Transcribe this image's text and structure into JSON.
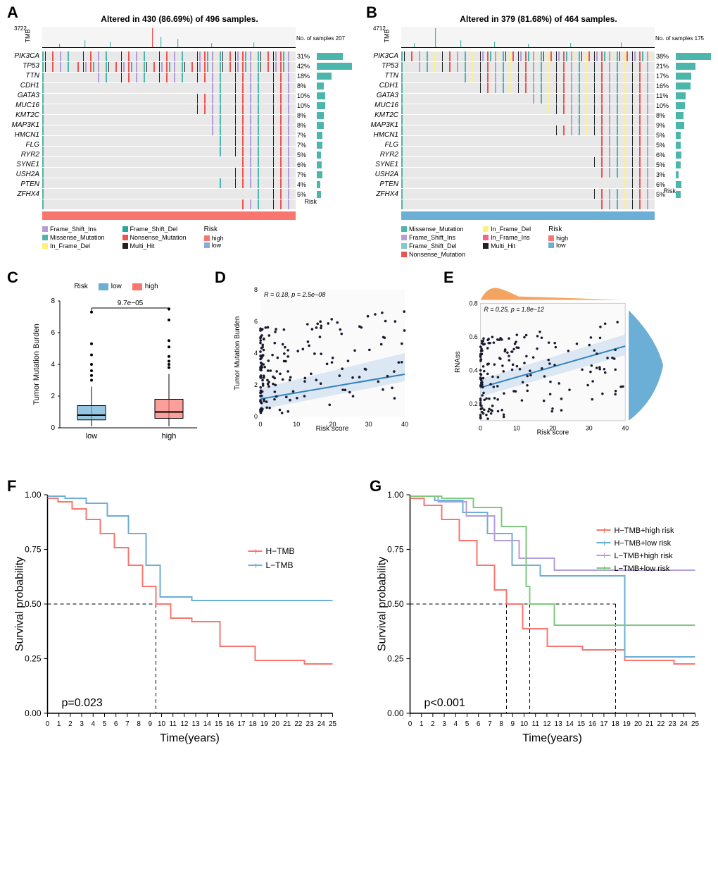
{
  "panels": {
    "A": {
      "label": "A"
    },
    "B": {
      "label": "B"
    },
    "C": {
      "label": "C"
    },
    "D": {
      "label": "D"
    },
    "E": {
      "label": "E"
    },
    "F": {
      "label": "F"
    },
    "G": {
      "label": "G"
    }
  },
  "waterfall_A": {
    "title": "Altered in 430 (86.69%) of 496 samples.",
    "tmb_label": "TMB",
    "tmb_max": "3722",
    "samples_label": "No. of samples",
    "samples_max": "207",
    "genes": [
      "PIK3CA",
      "TP53",
      "TTN",
      "CDH1",
      "GATA3",
      "MUC16",
      "KMT2C",
      "MAP3K1",
      "HMCN1",
      "FLG",
      "RYR2",
      "SYNE1",
      "USH2A",
      "PTEN",
      "ZFHX4"
    ],
    "pcts": [
      "31%",
      "42%",
      "18%",
      "8%",
      "10%",
      "10%",
      "8%",
      "8%",
      "7%",
      "7%",
      "5%",
      "6%",
      "7%",
      "4%",
      "5%"
    ],
    "bar_values": [
      31,
      42,
      18,
      8,
      10,
      10,
      8,
      8,
      7,
      7,
      5,
      6,
      7,
      4,
      5
    ],
    "risk_color": "#f8766d",
    "risk_label": "Risk",
    "legend1": [
      {
        "c": "#b39ddb",
        "t": "Frame_Shift_Ins"
      },
      {
        "c": "#4db6ac",
        "t": "Missense_Mutation"
      },
      {
        "c": "#fff176",
        "t": "In_Frame_Del"
      }
    ],
    "legend2": [
      {
        "c": "#26a69a",
        "t": "Frame_Shift_Del"
      },
      {
        "c": "#ef5350",
        "t": "Nonsense_Mutation"
      },
      {
        "c": "#212121",
        "t": "Multi_Hit"
      }
    ],
    "risk_legend_title": "Risk",
    "risk_legend": [
      {
        "c": "#f8766d",
        "t": "high"
      },
      {
        "c": "#8fa8dc",
        "t": "low"
      }
    ]
  },
  "waterfall_B": {
    "title": "Altered in 379 (81.68%) of 464 samples.",
    "tmb_label": "TMB",
    "tmb_max": "4712",
    "samples_label": "No. of samples",
    "samples_max": "175",
    "genes": [
      "PIK3CA",
      "TP53",
      "TTN",
      "CDH1",
      "GATA3",
      "MUC16",
      "KMT2C",
      "MAP3K1",
      "HMCN1",
      "FLG",
      "RYR2",
      "SYNE1",
      "USH2A",
      "PTEN",
      "ZFHX4"
    ],
    "pcts": [
      "38%",
      "21%",
      "17%",
      "16%",
      "11%",
      "10%",
      "8%",
      "9%",
      "5%",
      "5%",
      "6%",
      "5%",
      "3%",
      "6%",
      "5%"
    ],
    "bar_values": [
      38,
      21,
      17,
      16,
      11,
      10,
      8,
      9,
      5,
      5,
      6,
      5,
      3,
      6,
      5
    ],
    "risk_color": "#6baed6",
    "risk_label": "Risk",
    "legend1": [
      {
        "c": "#4db6ac",
        "t": "Missense_Mutation"
      },
      {
        "c": "#b39ddb",
        "t": "Frame_Shift_Ins"
      },
      {
        "c": "#80cbc4",
        "t": "Frame_Shift_Del"
      },
      {
        "c": "#ef5350",
        "t": "Nonsense_Mutation"
      }
    ],
    "legend2": [
      {
        "c": "#fff176",
        "t": "In_Frame_Del"
      },
      {
        "c": "#f06292",
        "t": "In_Frame_Ins"
      },
      {
        "c": "#212121",
        "t": "Multi_Hit"
      }
    ],
    "risk_legend_title": "Risk",
    "risk_legend": [
      {
        "c": "#f8766d",
        "t": "high"
      },
      {
        "c": "#6baed6",
        "t": "low"
      }
    ]
  },
  "boxplot_C": {
    "legend_title": "Risk",
    "legend": [
      {
        "c": "#6baed6",
        "t": "low"
      },
      {
        "c": "#f8766d",
        "t": "high"
      }
    ],
    "ylabel": "Tumor Mutation Burden",
    "pvalue": "9.7e−05",
    "ylim": [
      0,
      8
    ],
    "yticks": [
      0,
      2,
      4,
      6,
      8
    ],
    "categories": [
      "low",
      "high"
    ],
    "boxes": [
      {
        "color": "#6baed6",
        "q1": 0.5,
        "med": 0.8,
        "q3": 1.4,
        "wlo": 0.1,
        "whi": 2.6,
        "outliers": [
          3.0,
          3.3,
          3.6,
          4.0,
          4.6,
          5.3,
          7.3
        ]
      },
      {
        "color": "#f8766d",
        "q1": 0.6,
        "med": 1.0,
        "q3": 1.8,
        "wlo": 0.1,
        "whi": 3.4,
        "outliers": [
          3.8,
          4.0,
          4.2,
          4.5,
          5.1,
          5.5,
          6.8,
          7.5
        ]
      }
    ]
  },
  "scatter_D": {
    "stats": "R = 0.18, p = 2.5e−08",
    "ylabel": "Tumor Mutation Burden",
    "xlabel": "Risk score",
    "xlim": [
      0,
      40
    ],
    "ylim": [
      0,
      8
    ],
    "xticks": [
      0,
      10,
      20,
      30,
      40
    ],
    "yticks": [
      0,
      2,
      4,
      6,
      8
    ],
    "line_color": "#3182bd",
    "ci_color": "#c6dbef",
    "line": {
      "x1": 0,
      "y1": 1.0,
      "x2": 40,
      "y2": 2.5
    }
  },
  "scatter_E": {
    "stats": "R = 0.25, p = 1.8e−12",
    "ylabel": "RNAss",
    "xlabel": "Risk score",
    "xlim": [
      0,
      40
    ],
    "ylim": [
      0.1,
      0.8
    ],
    "xticks": [
      0,
      10,
      20,
      30,
      40
    ],
    "yticks": [
      0.2,
      0.4,
      0.6,
      0.8
    ],
    "line_color": "#3182bd",
    "ci_color": "#c6dbef",
    "marginal_top_color": "#f4a460",
    "marginal_right_color": "#6baed6",
    "line": {
      "x1": 0,
      "y1": 0.34,
      "x2": 40,
      "y2": 0.56
    }
  },
  "survival_F": {
    "ylabel": "Survival probability",
    "xlabel": "Time(years)",
    "pvalue": "p=0.023",
    "xlim": [
      0,
      25
    ],
    "ylim": [
      0,
      1
    ],
    "xticks": [
      0,
      1,
      2,
      3,
      4,
      5,
      6,
      7,
      8,
      9,
      10,
      11,
      12,
      13,
      14,
      15,
      16,
      17,
      18,
      19,
      20,
      21,
      22,
      23,
      24,
      25
    ],
    "yticks": [
      0.0,
      0.25,
      0.5,
      0.75,
      1.0
    ],
    "legend": [
      {
        "c": "#f8766d",
        "t": "H−TMB"
      },
      {
        "c": "#6baed6",
        "t": "L−TMB"
      }
    ],
    "median_x": 9.5
  },
  "survival_G": {
    "ylabel": "Survival probability",
    "xlabel": "Time(years)",
    "pvalue": "p<0.001",
    "xlim": [
      0,
      25
    ],
    "ylim": [
      0,
      1
    ],
    "xticks": [
      0,
      1,
      2,
      3,
      4,
      5,
      6,
      7,
      8,
      9,
      10,
      11,
      12,
      13,
      14,
      15,
      16,
      17,
      18,
      19,
      20,
      21,
      22,
      23,
      24,
      25
    ],
    "yticks": [
      0.0,
      0.25,
      0.5,
      0.75,
      1.0
    ],
    "legend": [
      {
        "c": "#f8766d",
        "t": "H−TMB+high risk"
      },
      {
        "c": "#6baed6",
        "t": "H−TMB+low risk"
      },
      {
        "c": "#b39ddb",
        "t": "L−TMB+high risk"
      },
      {
        "c": "#7fc97f",
        "t": "L−TMB+low risk"
      }
    ],
    "median_x": [
      8.5,
      10.5,
      18
    ]
  },
  "colors": {
    "teal": "#4db6ac",
    "red": "#f8766d",
    "blue": "#6baed6",
    "purple": "#b39ddb",
    "green": "#7fc97f",
    "grey": "#e8e8e8",
    "orange": "#f4a460"
  }
}
